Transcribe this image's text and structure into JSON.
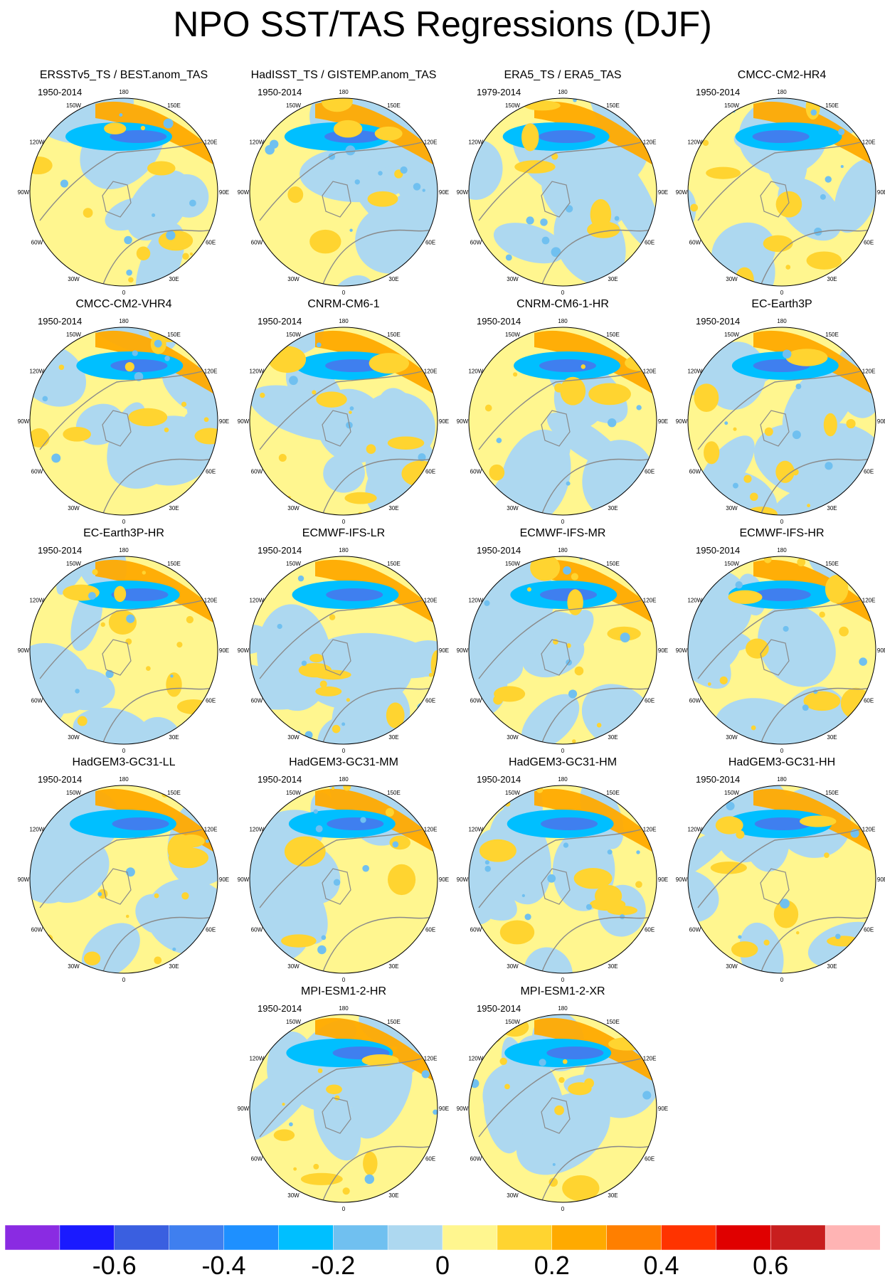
{
  "title": "NPO SST/TAS Regressions (DJF)",
  "longitude_labels": [
    "180",
    "150E",
    "120E",
    "90E",
    "60E",
    "30E",
    "0",
    "30W",
    "60W",
    "90W",
    "120W",
    "150W"
  ],
  "panels": [
    {
      "title": "ERSSTv5_TS / BEST.anom_TAS",
      "period": "1950-2014"
    },
    {
      "title": "HadISST_TS / GISTEMP.anom_TAS",
      "period": "1950-2014"
    },
    {
      "title": "ERA5_TS / ERA5_TAS",
      "period": "1979-2014"
    },
    {
      "title": "CMCC-CM2-HR4",
      "period": "1950-2014"
    },
    {
      "title": "CMCC-CM2-VHR4",
      "period": "1950-2014"
    },
    {
      "title": "CNRM-CM6-1",
      "period": "1950-2014"
    },
    {
      "title": "CNRM-CM6-1-HR",
      "period": "1950-2014"
    },
    {
      "title": "EC-Earth3P",
      "period": "1950-2014"
    },
    {
      "title": "EC-Earth3P-HR",
      "period": "1950-2014"
    },
    {
      "title": "ECMWF-IFS-LR",
      "period": "1950-2014"
    },
    {
      "title": "ECMWF-IFS-MR",
      "period": "1950-2014"
    },
    {
      "title": "ECMWF-IFS-HR",
      "period": "1950-2014"
    },
    {
      "title": "HadGEM3-GC31-LL",
      "period": "1950-2014"
    },
    {
      "title": "HadGEM3-GC31-MM",
      "period": "1950-2014"
    },
    {
      "title": "HadGEM3-GC31-HM",
      "period": "1950-2014"
    },
    {
      "title": "HadGEM3-GC31-HH",
      "period": "1950-2014"
    },
    {
      "title": "MPI-ESM1-2-HR",
      "period": "1950-2014"
    },
    {
      "title": "MPI-ESM1-2-XR",
      "period": "1950-2014"
    }
  ],
  "chart_data": {
    "type": "heatmap",
    "projection": "north polar stereographic",
    "colorbar": {
      "colors": [
        "#8a2be2",
        "#1a1aff",
        "#3a5fe0",
        "#3f7fef",
        "#1e90ff",
        "#00bfff",
        "#70c0f0",
        "#add8f0",
        "#fff68f",
        "#ffd430",
        "#ffaa00",
        "#ff7f00",
        "#ff3300",
        "#e00000",
        "#c81e1e",
        "#ffb4b4"
      ],
      "tick_labels": [
        "-0.6",
        "-0.4",
        "-0.2",
        "0",
        "0.2",
        "0.4",
        "0.6"
      ],
      "tick_values": [
        -0.6,
        -0.4,
        -0.2,
        0,
        0.2,
        0.4,
        0.6
      ],
      "range": [
        -0.8,
        0.8
      ]
    }
  }
}
